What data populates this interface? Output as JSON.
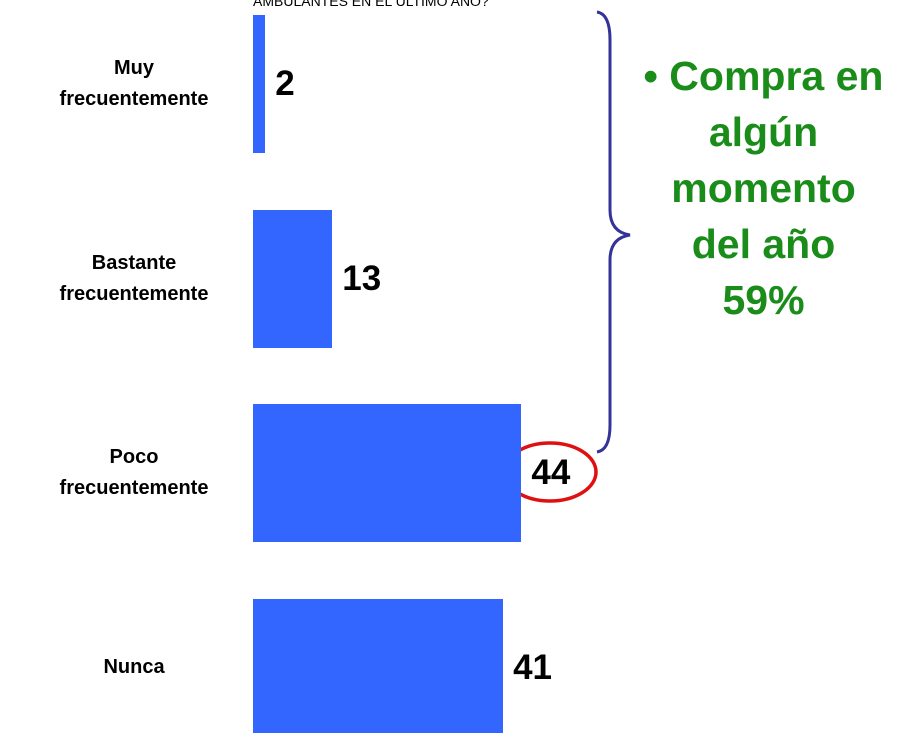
{
  "chart_data": {
    "type": "bar",
    "orientation": "horizontal",
    "subtitle": "AMBULANTES EN EL ÚLTIMO AÑO?",
    "categories": [
      "Muy frecuentemente",
      "Bastante frecuentemente",
      "Poco frecuentemente",
      "Nunca"
    ],
    "values": [
      2,
      13,
      44,
      41
    ],
    "color": "#3366ff",
    "annotation": [
      "Compra en",
      "algún",
      "momento",
      "del año",
      "59%"
    ],
    "annotation_color": "#1a8c1a"
  }
}
